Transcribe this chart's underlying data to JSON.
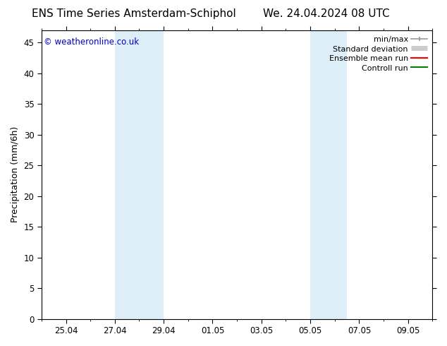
{
  "title_left": "ENS Time Series Amsterdam-Schiphol",
  "title_right": "We. 24.04.2024 08 UTC",
  "ylabel": "Precipitation (mm/6h)",
  "watermark": "© weatheronline.co.uk",
  "watermark_color": "#0000cc",
  "background_color": "#ffffff",
  "plot_bg_color": "#ffffff",
  "ylim": [
    0,
    47
  ],
  "yticks": [
    0,
    5,
    10,
    15,
    20,
    25,
    30,
    35,
    40,
    45
  ],
  "xlim": [
    0,
    16
  ],
  "xtick_labels": [
    "25.04",
    "27.04",
    "29.04",
    "01.05",
    "03.05",
    "05.05",
    "07.05",
    "09.05"
  ],
  "xtick_positions": [
    1,
    3,
    5,
    7,
    9,
    11,
    13,
    15
  ],
  "shaded_regions": [
    {
      "start": 3,
      "end": 5,
      "color": "#ddeef9"
    },
    {
      "start": 11,
      "end": 12.5,
      "color": "#ddeef9"
    }
  ],
  "legend_entries": [
    {
      "label": "min/max",
      "color": "#999999",
      "lw": 1.2
    },
    {
      "label": "Standard deviation",
      "color": "#cccccc",
      "lw": 5
    },
    {
      "label": "Ensemble mean run",
      "color": "#ff0000",
      "lw": 1.5
    },
    {
      "label": "Controll run",
      "color": "#008000",
      "lw": 1.5
    }
  ],
  "title_fontsize": 11,
  "axis_label_fontsize": 9,
  "tick_fontsize": 8.5,
  "legend_fontsize": 8,
  "watermark_fontsize": 8.5
}
